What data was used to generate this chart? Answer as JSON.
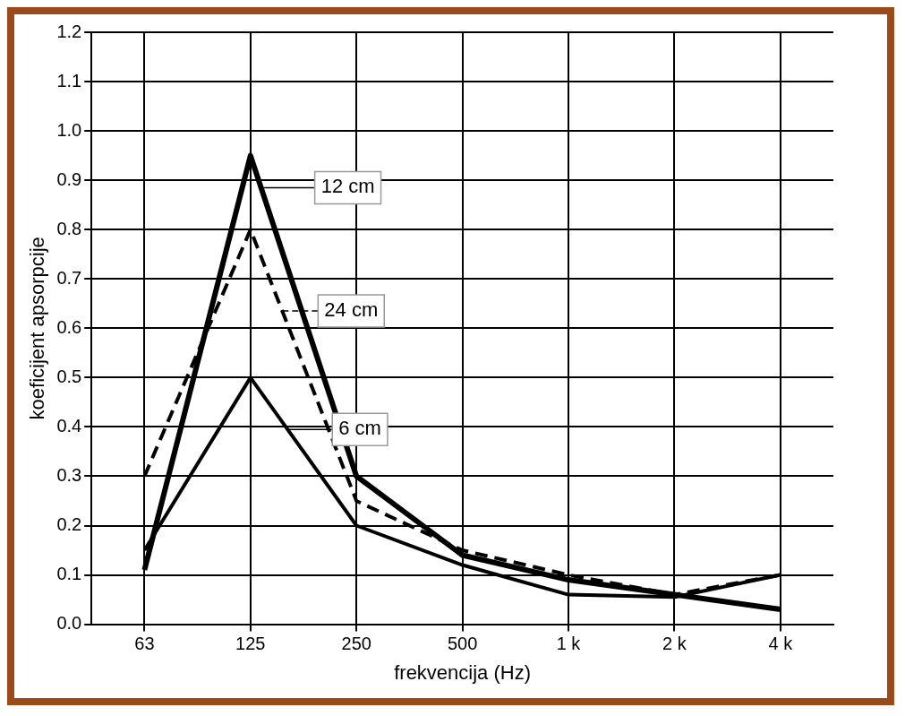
{
  "chart_data": {
    "type": "line",
    "xlabel": "frekvencija (Hz)",
    "ylabel": "koeficijent apsorpcije",
    "categories": [
      "63",
      "125",
      "250",
      "500",
      "1 k",
      "2 k",
      "4 k"
    ],
    "series": [
      {
        "name": "12 cm",
        "color": "#000000",
        "line_style": "solid",
        "values": [
          0.11,
          0.95,
          0.3,
          0.14,
          0.09,
          0.06,
          0.03
        ]
      },
      {
        "name": "24 cm",
        "color": "#000000",
        "line_style": "dashed",
        "values": [
          0.3,
          0.8,
          0.25,
          0.15,
          0.1,
          0.06,
          0.1
        ]
      },
      {
        "name": "6 cm",
        "color": "#000000",
        "line_style": "solid",
        "values": [
          0.15,
          0.5,
          0.2,
          0.12,
          0.06,
          0.055,
          0.1
        ]
      }
    ],
    "ylim": [
      0,
      1.2
    ],
    "yticks": [
      {
        "value": 0,
        "label": "0.0"
      },
      {
        "value": 0.1,
        "label": "0.1"
      },
      {
        "value": 0.2,
        "label": "0.2"
      },
      {
        "value": 0.3,
        "label": "0.3"
      },
      {
        "value": 0.4,
        "label": "0.4"
      },
      {
        "value": 0.5,
        "label": "0.5"
      },
      {
        "value": 0.6,
        "label": "0.6"
      },
      {
        "value": 0.7,
        "label": "0.7"
      },
      {
        "value": 0.8,
        "label": "0.8"
      },
      {
        "value": 0.9,
        "label": "0.9"
      },
      {
        "value": 1,
        "label": "1.0"
      },
      {
        "value": 1.1,
        "label": "1.1"
      },
      {
        "value": 1.2,
        "label": "1.2"
      }
    ],
    "grid": true,
    "legend": "top",
    "marker": "none"
  }
}
